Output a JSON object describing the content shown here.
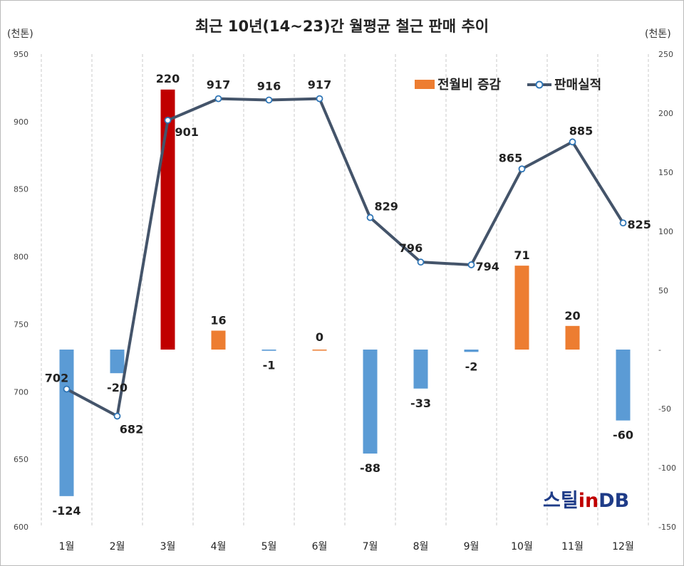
{
  "chart_data": {
    "type": "bar+line",
    "title": "최근 10년(14~23)간 월평균 철근 판매 추이",
    "left_unit": "(천톤)",
    "right_unit": "(천톤)",
    "categories": [
      "1월",
      "2월",
      "3월",
      "4월",
      "5월",
      "6월",
      "7월",
      "8월",
      "9월",
      "10월",
      "11월",
      "12월"
    ],
    "left_axis": {
      "min": 600,
      "max": 950,
      "ticks": [
        "600",
        "650",
        "700",
        "750",
        "800",
        "850",
        "900",
        "950"
      ]
    },
    "right_axis": {
      "min": -150,
      "max": 250,
      "ticks": [
        "-150",
        "-100",
        "-50",
        "-",
        "50",
        "100",
        "150",
        "200",
        "250"
      ]
    },
    "series": [
      {
        "name": "전월비 증감",
        "type": "bar",
        "axis": "right",
        "values": [
          -124,
          -20,
          220,
          16,
          -1,
          0,
          -88,
          -33,
          -2,
          71,
          20,
          -60
        ],
        "labels": [
          "-124",
          "-20",
          "220",
          "16",
          "-1",
          "0",
          "-88",
          "-33",
          "-2",
          "71",
          "20",
          "-60"
        ],
        "color_positive": "#ED7D31",
        "color_negative": "#5B9BD5",
        "color_highlight": "#C00000"
      },
      {
        "name": "판매실적",
        "type": "line",
        "axis": "left",
        "values": [
          702,
          682,
          901,
          917,
          916,
          917,
          829,
          796,
          794,
          865,
          885,
          825
        ],
        "labels": [
          "702",
          "682",
          "901",
          "917",
          "916",
          "917",
          "829",
          "796",
          "794",
          "865",
          "885",
          "825"
        ],
        "color": "#44546A"
      }
    ],
    "legend_position": "top-right",
    "grid": "vertical"
  },
  "watermark": {
    "part1": "스틸",
    "part2": "in",
    "part3": "DB"
  }
}
